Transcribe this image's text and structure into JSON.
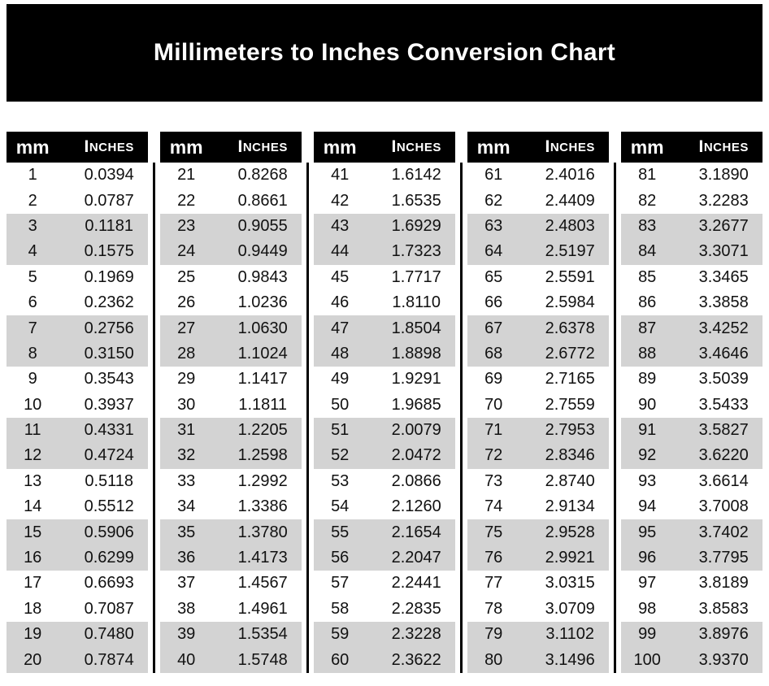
{
  "title": "Millimeters to Inches Conversion Chart",
  "colors": {
    "banner_bg": "#000000",
    "banner_text": "#ffffff",
    "header_bg": "#000000",
    "header_text": "#ffffff",
    "row_bg": "#ffffff",
    "row_shaded_bg": "#d3d3d3",
    "row_text": "#111111",
    "divider": "#000000"
  },
  "chart_data": {
    "type": "table",
    "title": "Millimeters to Inches Conversion Chart",
    "columns": [
      "mm",
      "Inches"
    ],
    "groups": [
      {
        "rows": [
          [
            "1",
            "0.0394"
          ],
          [
            "2",
            "0.0787"
          ],
          [
            "3",
            "0.1181"
          ],
          [
            "4",
            "0.1575"
          ],
          [
            "5",
            "0.1969"
          ],
          [
            "6",
            "0.2362"
          ],
          [
            "7",
            "0.2756"
          ],
          [
            "8",
            "0.3150"
          ],
          [
            "9",
            "0.3543"
          ],
          [
            "10",
            "0.3937"
          ],
          [
            "11",
            "0.4331"
          ],
          [
            "12",
            "0.4724"
          ],
          [
            "13",
            "0.5118"
          ],
          [
            "14",
            "0.5512"
          ],
          [
            "15",
            "0.5906"
          ],
          [
            "16",
            "0.6299"
          ],
          [
            "17",
            "0.6693"
          ],
          [
            "18",
            "0.7087"
          ],
          [
            "19",
            "0.7480"
          ],
          [
            "20",
            "0.7874"
          ]
        ]
      },
      {
        "rows": [
          [
            "21",
            "0.8268"
          ],
          [
            "22",
            "0.8661"
          ],
          [
            "23",
            "0.9055"
          ],
          [
            "24",
            "0.9449"
          ],
          [
            "25",
            "0.9843"
          ],
          [
            "26",
            "1.0236"
          ],
          [
            "27",
            "1.0630"
          ],
          [
            "28",
            "1.1024"
          ],
          [
            "29",
            "1.1417"
          ],
          [
            "30",
            "1.1811"
          ],
          [
            "31",
            "1.2205"
          ],
          [
            "32",
            "1.2598"
          ],
          [
            "33",
            "1.2992"
          ],
          [
            "34",
            "1.3386"
          ],
          [
            "35",
            "1.3780"
          ],
          [
            "36",
            "1.4173"
          ],
          [
            "37",
            "1.4567"
          ],
          [
            "38",
            "1.4961"
          ],
          [
            "39",
            "1.5354"
          ],
          [
            "40",
            "1.5748"
          ]
        ]
      },
      {
        "rows": [
          [
            "41",
            "1.6142"
          ],
          [
            "42",
            "1.6535"
          ],
          [
            "43",
            "1.6929"
          ],
          [
            "44",
            "1.7323"
          ],
          [
            "45",
            "1.7717"
          ],
          [
            "46",
            "1.8110"
          ],
          [
            "47",
            "1.8504"
          ],
          [
            "48",
            "1.8898"
          ],
          [
            "49",
            "1.9291"
          ],
          [
            "50",
            "1.9685"
          ],
          [
            "51",
            "2.0079"
          ],
          [
            "52",
            "2.0472"
          ],
          [
            "53",
            "2.0866"
          ],
          [
            "54",
            "2.1260"
          ],
          [
            "55",
            "2.1654"
          ],
          [
            "56",
            "2.2047"
          ],
          [
            "57",
            "2.2441"
          ],
          [
            "58",
            "2.2835"
          ],
          [
            "59",
            "2.3228"
          ],
          [
            "60",
            "2.3622"
          ]
        ]
      },
      {
        "rows": [
          [
            "61",
            "2.4016"
          ],
          [
            "62",
            "2.4409"
          ],
          [
            "63",
            "2.4803"
          ],
          [
            "64",
            "2.5197"
          ],
          [
            "65",
            "2.5591"
          ],
          [
            "66",
            "2.5984"
          ],
          [
            "67",
            "2.6378"
          ],
          [
            "68",
            "2.6772"
          ],
          [
            "69",
            "2.7165"
          ],
          [
            "70",
            "2.7559"
          ],
          [
            "71",
            "2.7953"
          ],
          [
            "72",
            "2.8346"
          ],
          [
            "73",
            "2.8740"
          ],
          [
            "74",
            "2.9134"
          ],
          [
            "75",
            "2.9528"
          ],
          [
            "76",
            "2.9921"
          ],
          [
            "77",
            "3.0315"
          ],
          [
            "78",
            "3.0709"
          ],
          [
            "79",
            "3.1102"
          ],
          [
            "80",
            "3.1496"
          ]
        ]
      },
      {
        "rows": [
          [
            "81",
            "3.1890"
          ],
          [
            "82",
            "3.2283"
          ],
          [
            "83",
            "3.2677"
          ],
          [
            "84",
            "3.3071"
          ],
          [
            "85",
            "3.3465"
          ],
          [
            "86",
            "3.3858"
          ],
          [
            "87",
            "3.4252"
          ],
          [
            "88",
            "3.4646"
          ],
          [
            "89",
            "3.5039"
          ],
          [
            "90",
            "3.5433"
          ],
          [
            "91",
            "3.5827"
          ],
          [
            "92",
            "3.6220"
          ],
          [
            "93",
            "3.6614"
          ],
          [
            "94",
            "3.7008"
          ],
          [
            "95",
            "3.7402"
          ],
          [
            "96",
            "3.7795"
          ],
          [
            "97",
            "3.8189"
          ],
          [
            "98",
            "3.8583"
          ],
          [
            "99",
            "3.8976"
          ],
          [
            "100",
            "3.9370"
          ]
        ]
      }
    ]
  },
  "table": {
    "headers": {
      "mm": "mm",
      "inches": "Inches"
    }
  }
}
